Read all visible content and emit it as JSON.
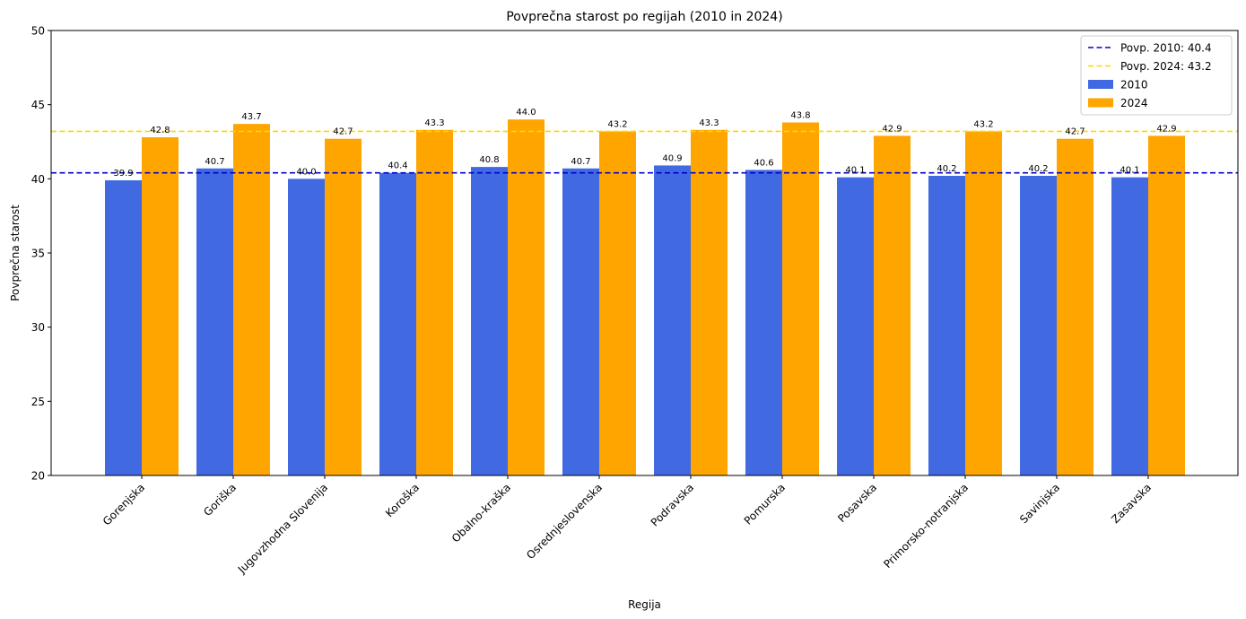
{
  "chart_data": {
    "type": "bar",
    "title": "Povprečna starost po regijah (2010 in 2024)",
    "xlabel": "Regija",
    "ylabel": "Povprečna starost",
    "ylim": [
      20,
      50
    ],
    "yticks": [
      20,
      25,
      30,
      35,
      40,
      45,
      50
    ],
    "categories": [
      "Gorenjska",
      "Goriška",
      "Jugovzhodna Slovenija",
      "Koroška",
      "Obalno-kraška",
      "Osrednjeslovenska",
      "Podravska",
      "Pomurska",
      "Posavska",
      "Primorsko-notranjska",
      "Savinjska",
      "Zasavska"
    ],
    "series": [
      {
        "name": "2010",
        "color": "#4169E1",
        "values": [
          39.9,
          40.7,
          40.0,
          40.4,
          40.8,
          40.7,
          40.9,
          40.6,
          40.1,
          40.2,
          40.2,
          40.1
        ],
        "labels": [
          "39.9",
          "40.7",
          "40.0",
          "40.4",
          "40.8",
          "40.7",
          "40.9",
          "40.6",
          "40.1",
          "40.2",
          "40.2",
          "40.1"
        ]
      },
      {
        "name": "2024",
        "color": "#FFA500",
        "values": [
          42.8,
          43.7,
          42.7,
          43.3,
          44.0,
          43.2,
          43.3,
          43.8,
          42.9,
          43.2,
          42.7,
          42.9
        ],
        "labels": [
          "42.8",
          "43.7",
          "42.7",
          "43.3",
          "44.0",
          "43.2",
          "43.3",
          "43.8",
          "42.9",
          "43.2",
          "42.7",
          "42.9"
        ]
      }
    ],
    "reference_lines": [
      {
        "name": "Povp. 2010: 40.4",
        "value": 40.4,
        "color": "#0000CD",
        "style": "dashed"
      },
      {
        "name": "Povp. 2024: 43.2",
        "value": 43.2,
        "color": "#FFD700",
        "style": "dashed"
      }
    ],
    "legend": "top-right",
    "grid": false
  }
}
